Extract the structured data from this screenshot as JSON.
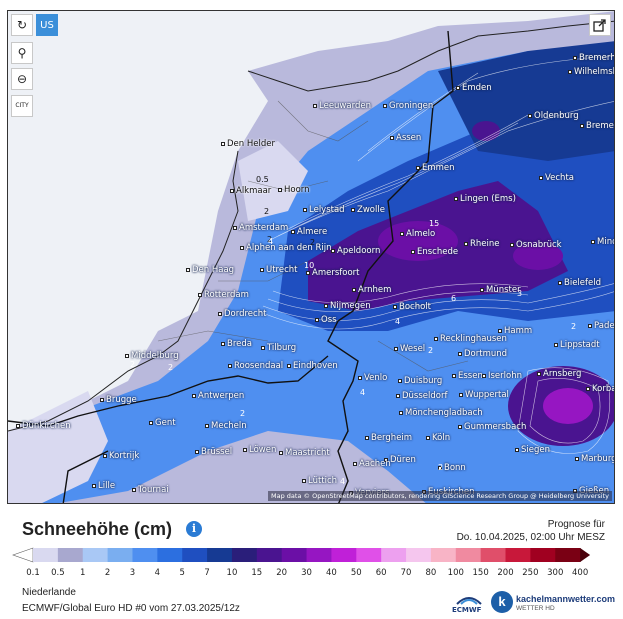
{
  "map": {
    "controls": {
      "region_code": "US",
      "refresh": "↻",
      "locate": "⚲",
      "zoom": "⊖",
      "city_label": "CITY"
    },
    "share_icon": "share-icon",
    "attribution": "Map data © OpenStreetMap contributors, rendering GIScience Research Group @ Heidelberg University",
    "cities": [
      {
        "name": "Emden"
      },
      {
        "name": "Bremerhaven"
      },
      {
        "name": "Wilhelmshaven"
      },
      {
        "name": "Oldenburg"
      },
      {
        "name": "Bremen"
      },
      {
        "name": "Leeuwarden"
      },
      {
        "name": "Groningen"
      },
      {
        "name": "Assen"
      },
      {
        "name": "Den Helder"
      },
      {
        "name": "Emmen"
      },
      {
        "name": "Vechta"
      },
      {
        "name": "Alkmaar"
      },
      {
        "name": "Hoorn"
      },
      {
        "name": "Lelystad"
      },
      {
        "name": "Zwolle"
      },
      {
        "name": "Lingen (Ems)"
      },
      {
        "name": "Amsterdam"
      },
      {
        "name": "Almere"
      },
      {
        "name": "Almelo"
      },
      {
        "name": "Minden"
      },
      {
        "name": "Alphen aan den Rijn"
      },
      {
        "name": "Apeldoorn"
      },
      {
        "name": "Rheine"
      },
      {
        "name": "Osnabrück"
      },
      {
        "name": "Utrecht"
      },
      {
        "name": "Enschede"
      },
      {
        "name": "Den Haag"
      },
      {
        "name": "Amersfoort"
      },
      {
        "name": "Bielefeld"
      },
      {
        "name": "Rotterdam"
      },
      {
        "name": "Arnhem"
      },
      {
        "name": "Münster"
      },
      {
        "name": "Nijmegen"
      },
      {
        "name": "Bocholt"
      },
      {
        "name": "Dordrecht"
      },
      {
        "name": "Oss"
      },
      {
        "name": "Paderborn"
      },
      {
        "name": "Hamm"
      },
      {
        "name": "Middelburg"
      },
      {
        "name": "Breda"
      },
      {
        "name": "Tilburg"
      },
      {
        "name": "Recklinghausen"
      },
      {
        "name": "Wesel"
      },
      {
        "name": "Lippstadt"
      },
      {
        "name": "Roosendaal"
      },
      {
        "name": "Dortmund"
      },
      {
        "name": "Eindhoven"
      },
      {
        "name": "Essen"
      },
      {
        "name": "Iserlohn"
      },
      {
        "name": "Arnsberg"
      },
      {
        "name": "Venlo"
      },
      {
        "name": "Duisburg"
      },
      {
        "name": "Korbach"
      },
      {
        "name": "Antwerpen"
      },
      {
        "name": "Wuppertal"
      },
      {
        "name": "Düsseldorf"
      },
      {
        "name": "Brugge"
      },
      {
        "name": "Mönchengladbach"
      },
      {
        "name": "Gent"
      },
      {
        "name": "Mecheln"
      },
      {
        "name": "Gummersbach"
      },
      {
        "name": "Dünkirchen"
      },
      {
        "name": "Bergheim"
      },
      {
        "name": "Köln"
      },
      {
        "name": "Löwen"
      },
      {
        "name": "Siegen"
      },
      {
        "name": "Kortrijk"
      },
      {
        "name": "Brüssel"
      },
      {
        "name": "Maastricht"
      },
      {
        "name": "Düren"
      },
      {
        "name": "Bonn"
      },
      {
        "name": "Marburg"
      },
      {
        "name": "Aachen"
      },
      {
        "name": "Lüttich"
      },
      {
        "name": "Lille"
      },
      {
        "name": "Tournai"
      },
      {
        "name": "Verviers"
      },
      {
        "name": "Euskirchen"
      },
      {
        "name": "Gießen"
      }
    ],
    "isolines": [
      "0.5",
      "2",
      "2",
      "2",
      "4",
      "15",
      "10",
      "6",
      "3",
      "4",
      "2",
      "2",
      "2",
      "2",
      "2",
      "4",
      "2",
      "4"
    ]
  },
  "header": {
    "title": "Schneehöhe (cm)",
    "info_icon": "info-icon",
    "forecast_label": "Prognose für",
    "forecast_time": "Do. 10.04.2025, 02:00 Uhr MESZ"
  },
  "legend": {
    "labels": [
      "0.1",
      "0.5",
      "1",
      "2",
      "3",
      "4",
      "5",
      "7",
      "10",
      "15",
      "20",
      "30",
      "40",
      "50",
      "60",
      "70",
      "80",
      "100",
      "150",
      "200",
      "250",
      "300",
      "400"
    ],
    "colors": [
      "#ffffff",
      "#d9d9f0",
      "#a8a8cf",
      "#a9c8f5",
      "#7aaef0",
      "#4f8ff0",
      "#2c6fe0",
      "#1f4fc0",
      "#163a93",
      "#2a1e7a",
      "#4a1490",
      "#6b0fa6",
      "#9616c2",
      "#c020d8",
      "#e050e8",
      "#eda0ef",
      "#f5c6ee",
      "#f8b4c6",
      "#f08aa0",
      "#e04f6a",
      "#c8183a",
      "#a00020",
      "#7a0014",
      "#4a000a"
    ]
  },
  "footer": {
    "region": "Niederlande",
    "model": "ECMWF/Global Euro HD #0 vom 27.03.2025/12z",
    "ecmwf_label": "ECMWF",
    "brand_name": "kachelmannwetter.com",
    "brand_sub": "WETTER HD"
  }
}
